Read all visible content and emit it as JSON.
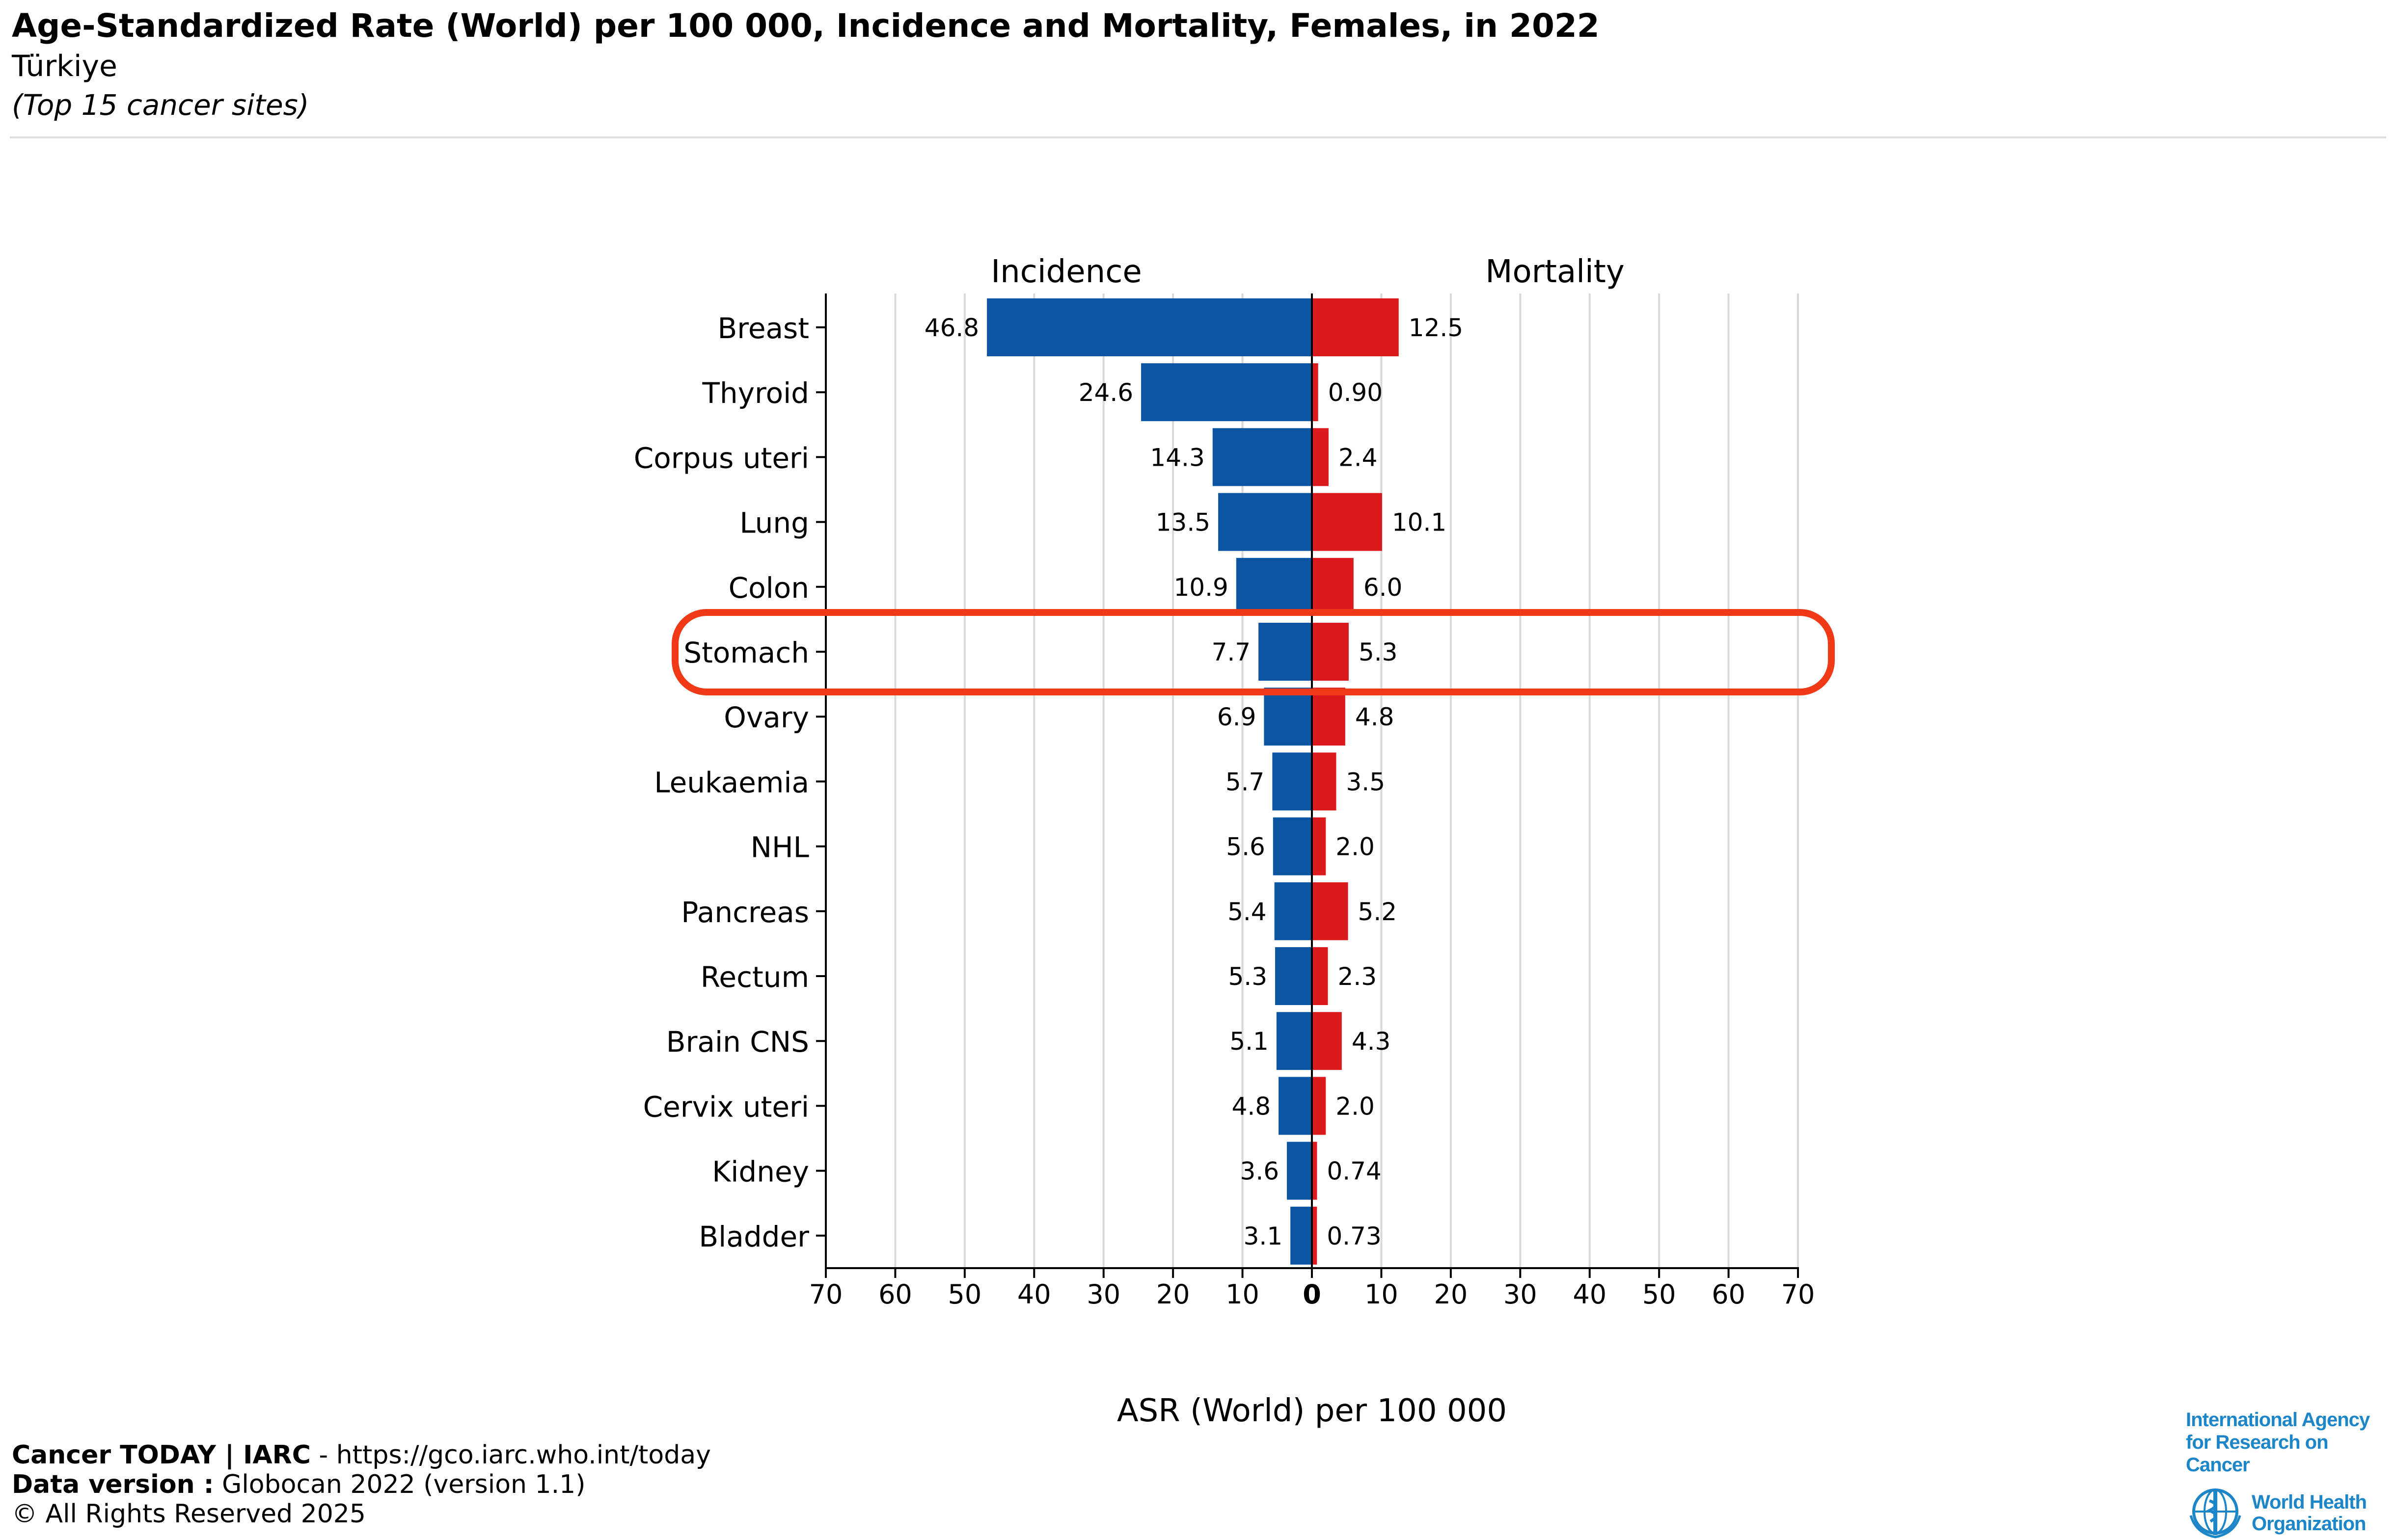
{
  "header": {
    "title": "Age-Standardized Rate (World) per 100 000, Incidence and Mortality, Females, in 2022",
    "subtitle": "Türkiye",
    "note": "(Top 15 cancer sites)"
  },
  "chart_data": {
    "type": "bar",
    "orientation": "horizontal-butterfly",
    "categories": [
      "Breast",
      "Thyroid",
      "Corpus uteri",
      "Lung",
      "Colon",
      "Stomach",
      "Ovary",
      "Leukaemia",
      "NHL",
      "Pancreas",
      "Rectum",
      "Brain CNS",
      "Cervix uteri",
      "Kidney",
      "Bladder"
    ],
    "series": [
      {
        "name": "Incidence",
        "color": "#0b55a2",
        "values": [
          46.8,
          24.6,
          14.3,
          13.5,
          10.9,
          7.7,
          6.9,
          5.7,
          5.6,
          5.4,
          5.3,
          5.1,
          4.8,
          3.6,
          3.1
        ],
        "labels": [
          "46.8",
          "24.6",
          "14.3",
          "13.5",
          "10.9",
          "7.7",
          "6.9",
          "5.7",
          "5.6",
          "5.4",
          "5.3",
          "5.1",
          "4.8",
          "3.6",
          "3.1"
        ]
      },
      {
        "name": "Mortality",
        "color": "#da1a1c",
        "values": [
          12.5,
          0.9,
          2.4,
          10.1,
          6.0,
          5.3,
          4.8,
          3.5,
          2.0,
          5.2,
          2.3,
          4.3,
          2.0,
          0.74,
          0.73
        ],
        "labels": [
          "12.5",
          "0.90",
          "2.4",
          "10.1",
          "6.0",
          "5.3",
          "4.8",
          "3.5",
          "2.0",
          "5.2",
          "2.3",
          "4.3",
          "2.0",
          "0.74",
          "0.73"
        ]
      }
    ],
    "xticks": [
      "70",
      "60",
      "50",
      "40",
      "30",
      "20",
      "10",
      "0",
      "10",
      "20",
      "30",
      "40",
      "50",
      "60",
      "70"
    ],
    "xlim": [
      0,
      70
    ],
    "xlabel": "ASR (World) per 100 000",
    "grid": "vertical",
    "highlight": {
      "category": "Stomach",
      "color": "#f03a17"
    }
  },
  "footer": {
    "source_brand": "Cancer TODAY | IARC",
    "source_url": " - https://gco.iarc.who.int/today",
    "data_version_label": "Data version :",
    "data_version": " Globocan 2022 (version 1.1)",
    "copyright": "© All Rights Reserved 2025"
  },
  "logos": {
    "iarc_line1": "International Agency",
    "iarc_line2": "for Research on Cancer",
    "who_line1": "World Health",
    "who_line2": "Organization"
  }
}
